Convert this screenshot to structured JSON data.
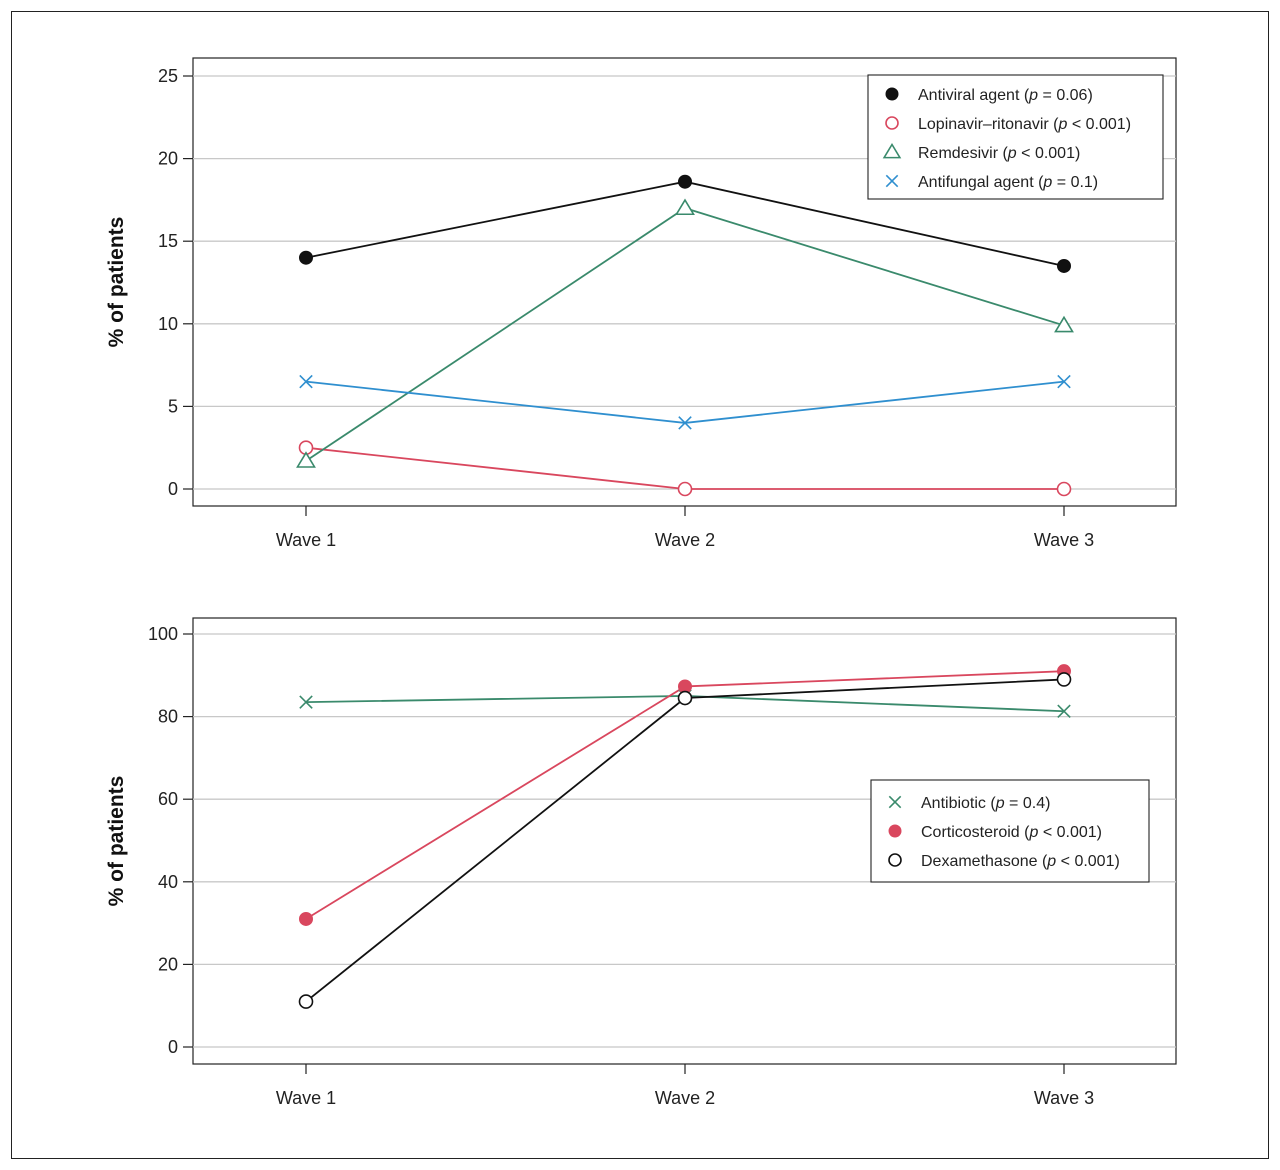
{
  "chart_data": [
    {
      "type": "line",
      "title": "",
      "xlabel": "",
      "ylabel": "% of patients",
      "categories": [
        "Wave 1",
        "Wave 2",
        "Wave 3"
      ],
      "ylim": [
        -1,
        25
      ],
      "yticks": [
        0,
        5,
        10,
        15,
        20,
        25
      ],
      "grid": true,
      "legend_position": "top-right",
      "series": [
        {
          "name": "Antiviral agent",
          "p": "p",
          "p_rest": " = 0.06)",
          "values": [
            14.0,
            18.6,
            13.5
          ],
          "color": "#111111",
          "marker": "filled-circle"
        },
        {
          "name": "Lopinavir–ritonavir",
          "p": "p",
          "p_rest": " < 0.001)",
          "values": [
            2.5,
            0.0,
            0.0
          ],
          "color": "#d9475e",
          "marker": "open-circle"
        },
        {
          "name": "Remdesivir",
          "p": "p",
          "p_rest": " < 0.001)",
          "values": [
            1.7,
            17.0,
            9.9
          ],
          "color": "#3a8a6c",
          "marker": "open-triangle"
        },
        {
          "name": "Antifungal agent",
          "p": "p",
          "p_rest": " = 0.1)",
          "values": [
            6.5,
            4.0,
            6.5
          ],
          "color": "#2f8fcf",
          "marker": "cross"
        }
      ]
    },
    {
      "type": "line",
      "title": "",
      "xlabel": "",
      "ylabel": "% of patients",
      "categories": [
        "Wave 1",
        "Wave 2",
        "Wave 3"
      ],
      "ylim": [
        -4,
        100
      ],
      "yticks": [
        0,
        20,
        40,
        60,
        80,
        100
      ],
      "grid": true,
      "legend_position": "right",
      "series": [
        {
          "name": "Antibiotic",
          "p": "p",
          "p_rest": " = 0.4)",
          "values": [
            83.5,
            85.0,
            81.3
          ],
          "color": "#3a8a6c",
          "marker": "cross"
        },
        {
          "name": "Corticosteroid",
          "p": "p",
          "p_rest": " < 0.001)",
          "values": [
            31.0,
            87.3,
            91.0
          ],
          "color": "#d9475e",
          "marker": "filled-circle"
        },
        {
          "name": "Dexamethasone",
          "p": "p",
          "p_rest": " < 0.001)",
          "values": [
            11.0,
            84.5,
            89.0
          ],
          "color": "#111111",
          "marker": "open-circle"
        }
      ]
    }
  ]
}
